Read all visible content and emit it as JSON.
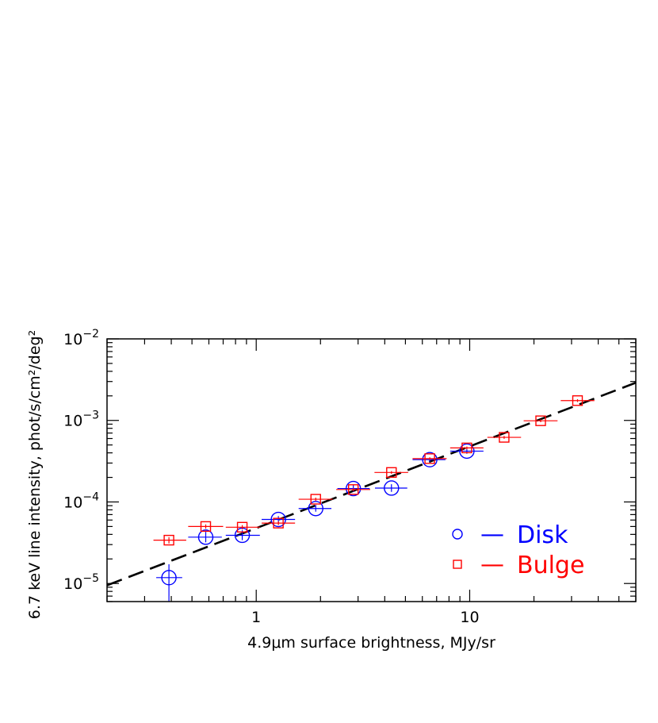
{
  "chart_data": {
    "type": "scatter",
    "title": "",
    "xlabel": "4.9μm surface brightness, MJy/sr",
    "ylabel": "6.7 keV line intensity, phot/s/cm²/deg²",
    "xscale": "log",
    "yscale": "log",
    "xlim": [
      0.2,
      60
    ],
    "ylim": [
      6e-06,
      0.01
    ],
    "x_ticks": [
      {
        "value": 1,
        "label": "1"
      },
      {
        "value": 10,
        "label": "10"
      }
    ],
    "y_ticks": [
      {
        "value": 1e-05,
        "base": "10",
        "exp": "−5"
      },
      {
        "value": 0.0001,
        "base": "10",
        "exp": "−4"
      },
      {
        "value": 0.001,
        "base": "10",
        "exp": "−3"
      },
      {
        "value": 0.01,
        "base": "10",
        "exp": "−2"
      }
    ],
    "grid": false,
    "legend_position": "bottom-right",
    "series": [
      {
        "name": "Disk",
        "marker": "circle",
        "color": "#0000ff",
        "points": [
          {
            "x": 0.39,
            "xlo": 0.34,
            "xhi": 0.45,
            "y": 1.18e-05,
            "ylo": 5.9e-06,
            "yhi": 1.72e-05
          },
          {
            "x": 0.58,
            "xlo": 0.48,
            "xhi": 0.69,
            "y": 3.7e-05,
            "ylo": 3.2e-05,
            "yhi": 4.3e-05
          },
          {
            "x": 0.86,
            "xlo": 0.72,
            "xhi": 1.04,
            "y": 3.9e-05,
            "ylo": 3.4e-05,
            "yhi": 4.5e-05
          },
          {
            "x": 1.27,
            "xlo": 1.06,
            "xhi": 1.52,
            "y": 6.1e-05,
            "ylo": 5.5e-05,
            "yhi": 6.7e-05
          },
          {
            "x": 1.9,
            "xlo": 1.58,
            "xhi": 2.25,
            "y": 8.3e-05,
            "ylo": 7.6e-05,
            "yhi": 9.2e-05
          },
          {
            "x": 2.85,
            "xlo": 2.4,
            "xhi": 3.4,
            "y": 0.000146,
            "ylo": 0.000133,
            "yhi": 0.00016
          },
          {
            "x": 4.3,
            "xlo": 3.6,
            "xhi": 5.1,
            "y": 0.000148,
            "ylo": 0.000133,
            "yhi": 0.000165
          },
          {
            "x": 6.5,
            "xlo": 5.4,
            "xhi": 7.7,
            "y": 0.00033,
            "ylo": 0.00031,
            "yhi": 0.00035
          },
          {
            "x": 9.7,
            "xlo": 8.1,
            "xhi": 11.6,
            "y": 0.00042,
            "ylo": 0.00039,
            "yhi": 0.00045
          }
        ]
      },
      {
        "name": "Bulge",
        "marker": "square",
        "color": "#ff0000",
        "points": [
          {
            "x": 0.39,
            "xlo": 0.33,
            "xhi": 0.47,
            "y": 3.4e-05,
            "ylo": 3.1e-05,
            "yhi": 3.7e-05
          },
          {
            "x": 0.58,
            "xlo": 0.48,
            "xhi": 0.7,
            "y": 5e-05,
            "ylo": 4.7e-05,
            "yhi": 5.3e-05
          },
          {
            "x": 0.86,
            "xlo": 0.72,
            "xhi": 1.04,
            "y": 4.9e-05,
            "ylo": 4.6e-05,
            "yhi": 5.2e-05
          },
          {
            "x": 1.27,
            "xlo": 1.06,
            "xhi": 1.52,
            "y": 5.5e-05,
            "ylo": 5.2e-05,
            "yhi": 5.8e-05
          },
          {
            "x": 1.9,
            "xlo": 1.58,
            "xhi": 2.28,
            "y": 0.000108,
            "ylo": 0.000103,
            "yhi": 0.000113
          },
          {
            "x": 2.85,
            "xlo": 2.37,
            "xhi": 3.42,
            "y": 0.000142,
            "ylo": 0.000136,
            "yhi": 0.000148
          },
          {
            "x": 4.3,
            "xlo": 3.58,
            "xhi": 5.15,
            "y": 0.00023,
            "ylo": 0.000221,
            "yhi": 0.000239
          },
          {
            "x": 6.5,
            "xlo": 5.4,
            "xhi": 7.8,
            "y": 0.00034,
            "ylo": 0.000327,
            "yhi": 0.000353
          },
          {
            "x": 9.7,
            "xlo": 8.1,
            "xhi": 11.6,
            "y": 0.00046,
            "ylo": 0.000442,
            "yhi": 0.000478
          },
          {
            "x": 14.5,
            "xlo": 12.1,
            "xhi": 17.4,
            "y": 0.00062,
            "ylo": 0.000595,
            "yhi": 0.000645
          },
          {
            "x": 21.5,
            "xlo": 17.9,
            "xhi": 25.8,
            "y": 0.00099,
            "ylo": 0.00095,
            "yhi": 0.00103
          },
          {
            "x": 32,
            "xlo": 26.7,
            "xhi": 38.4,
            "y": 0.00175,
            "ylo": 0.00168,
            "yhi": 0.00182
          }
        ]
      }
    ],
    "fit_line": {
      "style": "dashed",
      "color": "#000000",
      "x": [
        0.2,
        60
      ],
      "y": [
        9.5e-06,
        0.0029
      ]
    },
    "legend": [
      {
        "label": "Disk",
        "dash": "—",
        "color": "#0000ff",
        "marker": "circle"
      },
      {
        "label": "Bulge",
        "dash": "—",
        "color": "#ff0000",
        "marker": "square"
      }
    ]
  }
}
